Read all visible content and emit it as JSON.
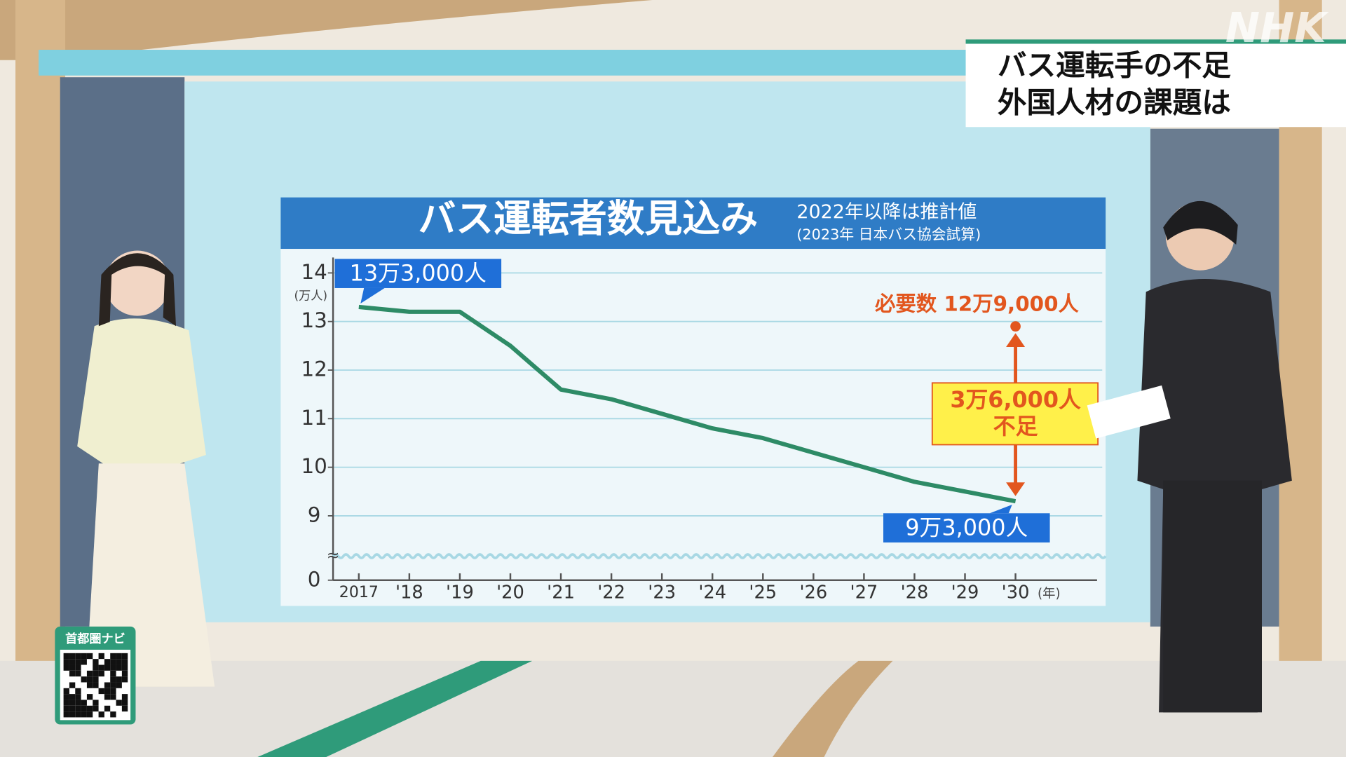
{
  "logo": "NHK",
  "caption": {
    "line1": "バス運転手の不足",
    "line2": "外国人材の課題は"
  },
  "corner_badge": "首都圏ナビ",
  "chart_data": {
    "type": "line",
    "title": "バス運転者数見込み",
    "subtitle": "2022年以降は推計値",
    "source": "(2023年 日本バス協会試算)",
    "y_label": "(万人)",
    "x_label": "(年)",
    "categories": [
      "2017",
      "'18",
      "'19",
      "'20",
      "'21",
      "'22",
      "'23",
      "'24",
      "'25",
      "'26",
      "'27",
      "'28",
      "'29",
      "'30"
    ],
    "values": [
      13.3,
      13.2,
      13.2,
      12.5,
      11.6,
      11.4,
      11.1,
      10.8,
      10.6,
      10.3,
      10.0,
      9.7,
      9.5,
      9.3
    ],
    "value_labels": [
      "13万3,000人",
      null,
      null,
      null,
      null,
      null,
      null,
      null,
      null,
      null,
      null,
      null,
      null,
      "9万3,000人"
    ],
    "color": "#2e8b66",
    "ylim": [
      0,
      14
    ],
    "yticks": [
      0,
      9,
      10,
      11,
      12,
      13,
      14
    ],
    "y_break": [
      0,
      9
    ],
    "grid": true,
    "required": {
      "label": "必要数 12万9,000人",
      "value": 12.9,
      "color": "#e2561e"
    },
    "shortage": {
      "label": "3万6,000人",
      "value": 3.6,
      "text": "不足"
    }
  }
}
